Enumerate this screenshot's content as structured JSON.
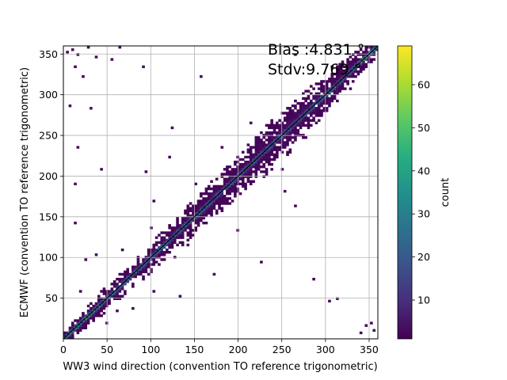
{
  "chart_data": {
    "type": "heatmap",
    "title": "",
    "xlabel": "WW3 wind direction (convention TO reference trigonometric)",
    "ylabel": "ECMWF (convention TO reference trigonometric)",
    "xlim": [
      0,
      360
    ],
    "ylim": [
      0,
      360
    ],
    "xticks": [
      0,
      50,
      100,
      150,
      200,
      250,
      300,
      350
    ],
    "yticks": [
      50,
      100,
      150,
      200,
      250,
      300,
      350
    ],
    "bin_size": 3,
    "grid": true,
    "diagonal_line": true,
    "colormap": "viridis",
    "colorbar": {
      "label": "count",
      "range": [
        1,
        69
      ],
      "ticks": [
        10,
        20,
        30,
        40,
        50,
        60
      ]
    },
    "annotations": [
      {
        "text": "Bias :4.831 °",
        "position": "top-right"
      },
      {
        "text": "Stdv:9.769 °",
        "position": "top-right"
      }
    ],
    "summary_stats": {
      "bias_deg": 4.831,
      "stdv_deg": 9.769
    },
    "band_spread": {
      "centers": [
        0,
        50,
        100,
        150,
        180,
        200,
        250,
        300,
        360
      ],
      "half_width_deg": [
        6,
        8,
        10,
        12,
        14,
        16,
        18,
        14,
        6
      ]
    },
    "outlier_cells": [
      [
        3,
        351
      ],
      [
        9,
        354
      ],
      [
        15,
        348
      ],
      [
        27,
        357
      ],
      [
        36,
        345
      ],
      [
        54,
        342
      ],
      [
        63,
        357
      ],
      [
        12,
        333
      ],
      [
        21,
        321
      ],
      [
        90,
        333
      ],
      [
        6,
        285
      ],
      [
        30,
        282
      ],
      [
        15,
        234
      ],
      [
        12,
        189
      ],
      [
        42,
        207
      ],
      [
        12,
        141
      ],
      [
        36,
        102
      ],
      [
        24,
        96
      ],
      [
        66,
        108
      ],
      [
        99,
        135
      ],
      [
        102,
        168
      ],
      [
        93,
        204
      ],
      [
        123,
        258
      ],
      [
        156,
        321
      ],
      [
        213,
        264
      ],
      [
        198,
        132
      ],
      [
        249,
        207
      ],
      [
        252,
        180
      ],
      [
        264,
        162
      ],
      [
        285,
        72
      ],
      [
        303,
        45
      ],
      [
        312,
        48
      ],
      [
        345,
        15
      ],
      [
        351,
        18
      ],
      [
        339,
        6
      ],
      [
        354,
        9
      ],
      [
        306,
        333
      ],
      [
        264,
        348
      ],
      [
        225,
        93
      ],
      [
        171,
        78
      ],
      [
        132,
        51
      ],
      [
        78,
        36
      ],
      [
        18,
        57
      ],
      [
        48,
        18
      ],
      [
        60,
        33
      ],
      [
        126,
        99
      ],
      [
        141,
        114
      ],
      [
        183,
        171
      ],
      [
        216,
        192
      ],
      [
        237,
        228
      ],
      [
        273,
        288
      ],
      [
        294,
        276
      ],
      [
        327,
        306
      ],
      [
        330,
        348
      ],
      [
        120,
        222
      ],
      [
        150,
        189
      ],
      [
        180,
        234
      ],
      [
        276,
        246
      ],
      [
        102,
        57
      ],
      [
        72,
        84
      ]
    ]
  }
}
